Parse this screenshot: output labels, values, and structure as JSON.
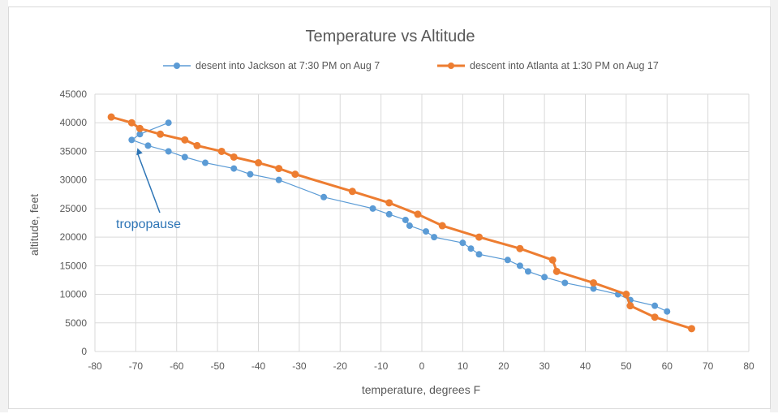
{
  "chart_data": {
    "type": "scatter",
    "title": "Temperature vs Altitude",
    "xlabel": "temperature,  degrees F",
    "ylabel": "altitude, feet",
    "xlim": [
      -80,
      80
    ],
    "ylim": [
      0,
      45000
    ],
    "xticks": [
      -80,
      -70,
      -60,
      -50,
      -40,
      -30,
      -20,
      -10,
      0,
      10,
      20,
      30,
      40,
      50,
      60,
      70,
      80
    ],
    "yticks": [
      0,
      5000,
      10000,
      15000,
      20000,
      25000,
      30000,
      35000,
      40000,
      45000
    ],
    "grid": true,
    "legend_position": "top",
    "series": [
      {
        "name": "desent into Jackson at 7:30 PM on Aug 7",
        "color": "#5b9bd5",
        "points": [
          [
            -62,
            40000
          ],
          [
            -69,
            38000
          ],
          [
            -71,
            37000
          ],
          [
            -67,
            36000
          ],
          [
            -62,
            35000
          ],
          [
            -58,
            34000
          ],
          [
            -53,
            33000
          ],
          [
            -46,
            32000
          ],
          [
            -42,
            31000
          ],
          [
            -35,
            30000
          ],
          [
            -24,
            27000
          ],
          [
            -12,
            25000
          ],
          [
            -8,
            24000
          ],
          [
            -4,
            23000
          ],
          [
            -3,
            22000
          ],
          [
            1,
            21000
          ],
          [
            3,
            20000
          ],
          [
            10,
            19000
          ],
          [
            12,
            18000
          ],
          [
            14,
            17000
          ],
          [
            21,
            16000
          ],
          [
            24,
            15000
          ],
          [
            26,
            14000
          ],
          [
            30,
            13000
          ],
          [
            35,
            12000
          ],
          [
            42,
            11000
          ],
          [
            48,
            10000
          ],
          [
            51,
            9000
          ],
          [
            57,
            8000
          ],
          [
            60,
            7000
          ]
        ]
      },
      {
        "name": "descent into Atlanta at 1:30 PM on Aug 17",
        "color": "#ed7d31",
        "points": [
          [
            -76,
            41000
          ],
          [
            -71,
            40000
          ],
          [
            -69,
            39000
          ],
          [
            -64,
            38000
          ],
          [
            -58,
            37000
          ],
          [
            -55,
            36000
          ],
          [
            -49,
            35000
          ],
          [
            -46,
            34000
          ],
          [
            -40,
            33000
          ],
          [
            -35,
            32000
          ],
          [
            -31,
            31000
          ],
          [
            -17,
            28000
          ],
          [
            -8,
            26000
          ],
          [
            -1,
            24000
          ],
          [
            5,
            22000
          ],
          [
            14,
            20000
          ],
          [
            24,
            18000
          ],
          [
            32,
            16000
          ],
          [
            33,
            14000
          ],
          [
            42,
            12000
          ],
          [
            50,
            10000
          ],
          [
            51,
            8000
          ],
          [
            57,
            6000
          ],
          [
            66,
            4000
          ]
        ]
      }
    ],
    "annotations": [
      {
        "text": "tropopause",
        "color": "#2e75b6",
        "arrow_to": [
          -70,
          37000
        ]
      }
    ]
  }
}
